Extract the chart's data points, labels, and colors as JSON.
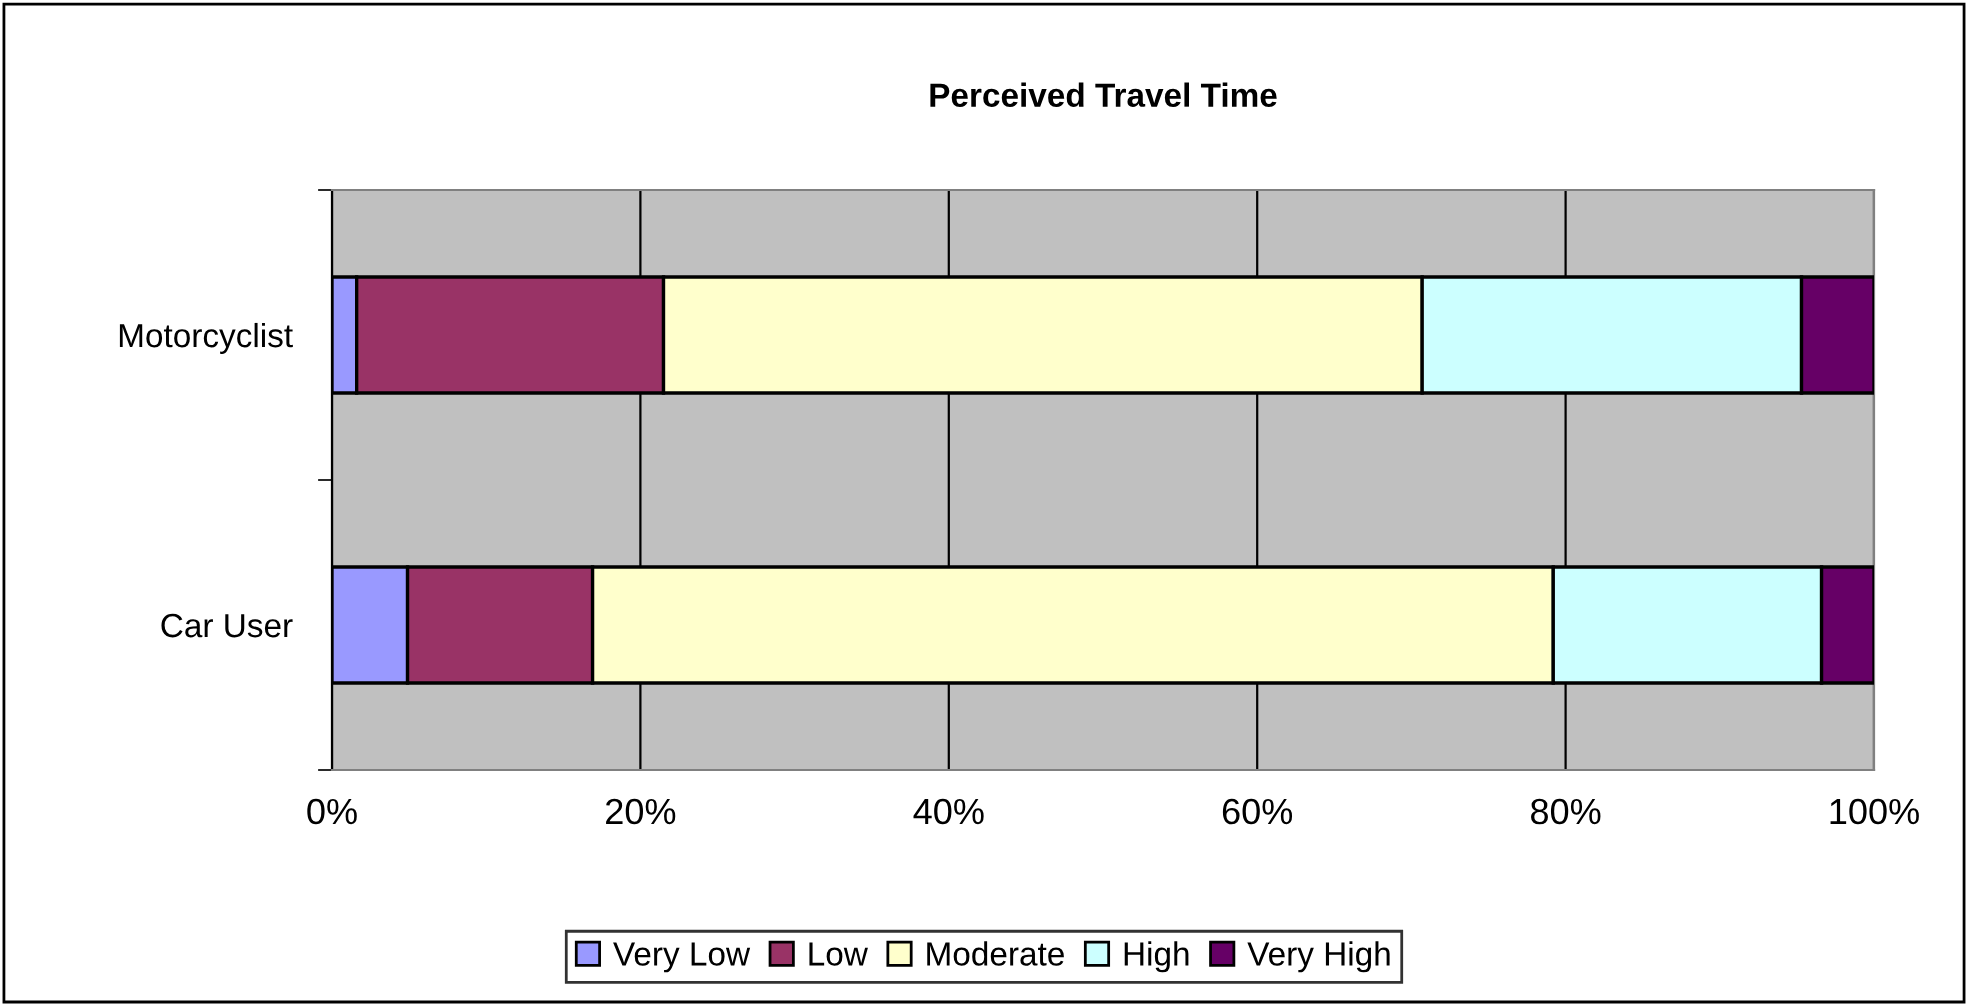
{
  "chart_data": {
    "type": "bar",
    "title": "Perceived Travel Time",
    "orientation": "horizontal",
    "stacked": true,
    "categories": [
      "Motorcyclist",
      "Car User"
    ],
    "series": [
      {
        "name": "Very Low",
        "color": "#9999ff",
        "values": [
          1.6,
          4.9
        ]
      },
      {
        "name": "Low",
        "color": "#993366",
        "values": [
          19.9,
          12.0
        ]
      },
      {
        "name": "Moderate",
        "color": "#ffffcc",
        "values": [
          49.2,
          62.3
        ]
      },
      {
        "name": "High",
        "color": "#ccffff",
        "values": [
          24.6,
          17.4
        ]
      },
      {
        "name": "Very High",
        "color": "#660066",
        "values": [
          4.7,
          3.4
        ]
      }
    ],
    "xlim": [
      0,
      100
    ],
    "xticks": [
      {
        "value": 0,
        "label": "0%"
      },
      {
        "value": 20,
        "label": "20%"
      },
      {
        "value": 40,
        "label": "40%"
      },
      {
        "value": 60,
        "label": "60%"
      },
      {
        "value": 80,
        "label": "80%"
      },
      {
        "value": 100,
        "label": "100%"
      }
    ],
    "grid": "x",
    "legend": "bottom"
  }
}
